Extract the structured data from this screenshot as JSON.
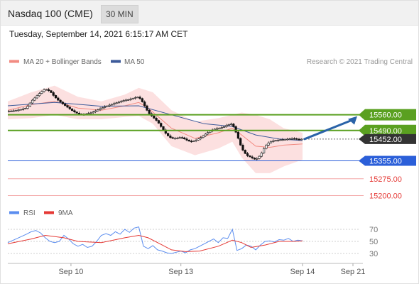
{
  "header": {
    "title": "Nasdaq 100 (CME)",
    "interval": "30 MIN"
  },
  "datetime": "Tuesday, September 14, 2021 6:15:17 AM CET",
  "credit": "Research © 2021 Trading Central",
  "colors": {
    "ma20_bollinger": "#f28b82",
    "ma50": "#3c5a9a",
    "resistance": "#5aa020",
    "support": "#2b5fd9",
    "support_low": "#e53935",
    "current": "#333333",
    "arrow": "#2a63a8",
    "rsi": "#5b8def",
    "rsi_ma": "#e53935"
  },
  "chart_data": [
    {
      "type": "candlestick",
      "title": "",
      "legend": [
        {
          "name": "MA 20 + Bollinger Bands",
          "color": "#f28b82"
        },
        {
          "name": "MA 50",
          "color": "#3c5a9a"
        }
      ],
      "x_ticks": [
        "Sep 10",
        "Sep 13",
        "Sep 14",
        "Sep 21"
      ],
      "y_range": [
        15170,
        15755
      ],
      "levels": [
        {
          "value": 15560.0,
          "label": "15560.00",
          "kind": "resistance"
        },
        {
          "value": 15490.0,
          "label": "15490.00",
          "kind": "resistance"
        },
        {
          "value": 15452.0,
          "label": "15452.00",
          "kind": "current"
        },
        {
          "value": 15355.0,
          "label": "15355.00",
          "kind": "support"
        },
        {
          "value": 15275.0,
          "label": "15275.00",
          "kind": "support_low"
        },
        {
          "value": 15200.0,
          "label": "15200.00",
          "kind": "support_low"
        }
      ],
      "forecast_target": 15560.0,
      "price_path": [
        [
          0,
          15575
        ],
        [
          4,
          15580
        ],
        [
          8,
          15590
        ],
        [
          10,
          15620
        ],
        [
          12,
          15640
        ],
        [
          14,
          15660
        ],
        [
          16,
          15675
        ],
        [
          18,
          15665
        ],
        [
          20,
          15640
        ],
        [
          22,
          15620
        ],
        [
          24,
          15605
        ],
        [
          26,
          15590
        ],
        [
          28,
          15575
        ],
        [
          30,
          15565
        ],
        [
          32,
          15560
        ],
        [
          34,
          15565
        ],
        [
          36,
          15570
        ],
        [
          38,
          15580
        ],
        [
          40,
          15590
        ],
        [
          42,
          15598
        ],
        [
          44,
          15605
        ],
        [
          46,
          15612
        ],
        [
          48,
          15618
        ],
        [
          50,
          15625
        ],
        [
          52,
          15628
        ],
        [
          54,
          15635
        ],
        [
          56,
          15640
        ],
        [
          58,
          15610
        ],
        [
          60,
          15570
        ],
        [
          62,
          15550
        ],
        [
          64,
          15530
        ],
        [
          66,
          15500
        ],
        [
          68,
          15470
        ],
        [
          70,
          15455
        ],
        [
          72,
          15455
        ],
        [
          74,
          15460
        ],
        [
          76,
          15450
        ],
        [
          78,
          15440
        ],
        [
          80,
          15445
        ],
        [
          82,
          15455
        ],
        [
          84,
          15470
        ],
        [
          86,
          15485
        ],
        [
          88,
          15495
        ],
        [
          90,
          15500
        ],
        [
          92,
          15505
        ],
        [
          94,
          15515
        ],
        [
          96,
          15520
        ],
        [
          98,
          15470
        ],
        [
          100,
          15410
        ],
        [
          102,
          15380
        ],
        [
          104,
          15370
        ],
        [
          106,
          15360
        ],
        [
          108,
          15380
        ],
        [
          110,
          15420
        ],
        [
          112,
          15440
        ],
        [
          114,
          15445
        ],
        [
          116,
          15448
        ],
        [
          118,
          15450
        ],
        [
          120,
          15452
        ],
        [
          122,
          15455
        ],
        [
          124,
          15450
        ],
        [
          126,
          15452
        ]
      ],
      "ma20": [
        [
          0,
          15580
        ],
        [
          10,
          15605
        ],
        [
          20,
          15620
        ],
        [
          30,
          15590
        ],
        [
          40,
          15580
        ],
        [
          50,
          15600
        ],
        [
          56,
          15615
        ],
        [
          60,
          15590
        ],
        [
          70,
          15500
        ],
        [
          80,
          15455
        ],
        [
          90,
          15480
        ],
        [
          96,
          15500
        ],
        [
          100,
          15470
        ],
        [
          106,
          15420
        ],
        [
          112,
          15415
        ],
        [
          118,
          15425
        ],
        [
          126,
          15430
        ]
      ],
      "ma50": [
        [
          0,
          15600
        ],
        [
          20,
          15615
        ],
        [
          40,
          15598
        ],
        [
          56,
          15600
        ],
        [
          70,
          15560
        ],
        [
          84,
          15520
        ],
        [
          96,
          15508
        ],
        [
          106,
          15470
        ],
        [
          116,
          15452
        ],
        [
          126,
          15445
        ]
      ],
      "bollinger_upper": [
        [
          0,
          15620
        ],
        [
          10,
          15660
        ],
        [
          20,
          15690
        ],
        [
          30,
          15640
        ],
        [
          40,
          15620
        ],
        [
          50,
          15650
        ],
        [
          56,
          15680
        ],
        [
          62,
          15660
        ],
        [
          70,
          15580
        ],
        [
          80,
          15530
        ],
        [
          90,
          15545
        ],
        [
          96,
          15560
        ],
        [
          100,
          15570
        ],
        [
          106,
          15560
        ],
        [
          112,
          15540
        ],
        [
          118,
          15500
        ],
        [
          126,
          15480
        ]
      ],
      "bollinger_lower": [
        [
          0,
          15540
        ],
        [
          10,
          15545
        ],
        [
          20,
          15560
        ],
        [
          30,
          15540
        ],
        [
          40,
          15540
        ],
        [
          50,
          15550
        ],
        [
          56,
          15555
        ],
        [
          62,
          15520
        ],
        [
          70,
          15420
        ],
        [
          80,
          15380
        ],
        [
          90,
          15410
        ],
        [
          96,
          15440
        ],
        [
          100,
          15370
        ],
        [
          106,
          15300
        ],
        [
          112,
          15300
        ],
        [
          118,
          15330
        ],
        [
          126,
          15360
        ]
      ]
    },
    {
      "type": "line",
      "title": "",
      "legend": [
        {
          "name": "RSI",
          "color": "#5b8def"
        },
        {
          "name": "9MA",
          "color": "#e53935"
        }
      ],
      "y_range": [
        17,
        83
      ],
      "y_ticks": [
        70,
        50,
        30
      ],
      "series": [
        {
          "name": "RSI",
          "x": [
            0,
            4,
            8,
            10,
            12,
            14,
            16,
            18,
            20,
            22,
            24,
            26,
            28,
            30,
            32,
            34,
            36,
            38,
            40,
            42,
            44,
            46,
            48,
            50,
            52,
            54,
            56,
            58,
            60,
            62,
            64,
            66,
            68,
            70,
            72,
            74,
            76,
            78,
            80,
            82,
            84,
            86,
            88,
            90,
            92,
            94,
            96,
            98,
            100,
            102,
            104,
            106,
            108,
            110,
            112,
            114,
            116,
            118,
            120,
            122,
            124,
            126
          ],
          "values": [
            48,
            55,
            62,
            66,
            68,
            64,
            56,
            50,
            48,
            50,
            60,
            54,
            46,
            42,
            45,
            40,
            42,
            50,
            60,
            63,
            60,
            66,
            62,
            70,
            65,
            72,
            74,
            42,
            38,
            43,
            36,
            34,
            31,
            30,
            32,
            34,
            31,
            36,
            38,
            42,
            46,
            50,
            54,
            48,
            56,
            55,
            70,
            35,
            38,
            44,
            42,
            36,
            44,
            50,
            51,
            49,
            53,
            52,
            55,
            50,
            52,
            51
          ]
        },
        {
          "name": "9MA",
          "x": [
            0,
            10,
            16,
            24,
            30,
            40,
            50,
            56,
            60,
            66,
            70,
            76,
            82,
            90,
            96,
            100,
            104,
            110,
            116,
            122,
            126
          ],
          "values": [
            46,
            54,
            60,
            56,
            50,
            48,
            56,
            60,
            56,
            44,
            36,
            33,
            34,
            42,
            52,
            48,
            40,
            44,
            50,
            50,
            51
          ]
        }
      ]
    }
  ]
}
